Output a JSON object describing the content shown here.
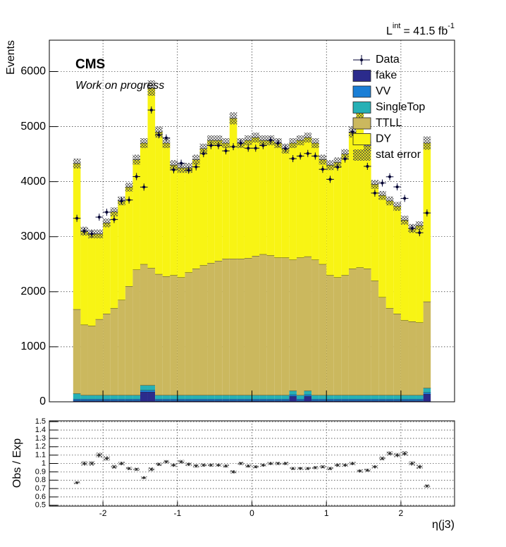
{
  "chart_data": [
    {
      "type": "histogram",
      "stacked": true,
      "grid": true,
      "lumi": [
        "L",
        "int",
        "= 41.5 fb",
        "-1"
      ],
      "experiment": "CMS",
      "subtitle": "Work on progress",
      "ylabel": "Events",
      "xlim": [
        -2.72,
        2.72
      ],
      "xticks": [
        -2,
        -1,
        0,
        1,
        2
      ],
      "ylim": [
        0,
        6570
      ],
      "yticks": [
        0,
        1000,
        2000,
        3000,
        4000,
        5000,
        6000
      ],
      "bins": [
        -2.4,
        -2.3,
        -2.2,
        -2.1,
        -2,
        -1.9,
        -1.8,
        -1.7,
        -1.6,
        -1.5,
        -1.4,
        -1.3,
        -1.2,
        -1.1,
        -1,
        -0.9,
        -0.8,
        -0.7,
        -0.6,
        -0.5,
        -0.4,
        -0.3,
        -0.2,
        -0.1,
        0,
        0.1,
        0.2,
        0.3,
        0.4,
        0.5,
        0.6,
        0.7,
        0.8,
        0.9,
        1,
        1.1,
        1.2,
        1.3,
        1.4,
        1.5,
        1.6,
        1.7,
        1.8,
        1.9,
        2,
        2.1,
        2.2,
        2.3,
        2.4
      ],
      "data": {
        "name": "Data",
        "color": "#000033",
        "values": [
          3334,
          3100,
          3050,
          3355,
          3445,
          3312,
          3650,
          3666,
          4092,
          3901,
          5301,
          4851,
          4794,
          4214,
          4335,
          4208,
          4268,
          4508,
          4655,
          4655,
          4559,
          4635,
          4700,
          4608,
          4608,
          4655,
          4750,
          4700,
          4600,
          4418,
          4465,
          4512,
          4465,
          4224,
          4042,
          4263,
          4410,
          4900,
          4778,
          4278,
          3792,
          3975,
          4088,
          3905,
          3696,
          3150,
          3072,
          3431
        ]
      },
      "series": [
        {
          "name": "fake",
          "color": "#2b2b8c",
          "values": [
            20,
            20,
            20,
            20,
            20,
            20,
            20,
            20,
            20,
            180,
            180,
            20,
            20,
            20,
            20,
            20,
            20,
            20,
            20,
            20,
            20,
            20,
            20,
            20,
            20,
            20,
            20,
            20,
            20,
            100,
            20,
            100,
            20,
            20,
            20,
            20,
            20,
            20,
            20,
            20,
            20,
            20,
            20,
            20,
            20,
            20,
            20,
            140
          ]
        },
        {
          "name": "VV",
          "color": "#1a7fd6",
          "values": [
            30,
            30,
            30,
            30,
            30,
            30,
            30,
            30,
            30,
            30,
            30,
            30,
            30,
            30,
            30,
            30,
            30,
            30,
            30,
            30,
            30,
            30,
            30,
            30,
            30,
            30,
            30,
            30,
            30,
            30,
            30,
            30,
            30,
            30,
            30,
            30,
            30,
            30,
            30,
            30,
            30,
            30,
            30,
            30,
            30,
            30,
            30,
            30
          ]
        },
        {
          "name": "SingleTop",
          "color": "#26b0b5",
          "values": [
            100,
            70,
            70,
            70,
            70,
            70,
            70,
            70,
            70,
            90,
            90,
            70,
            70,
            70,
            70,
            70,
            70,
            70,
            70,
            70,
            70,
            70,
            70,
            70,
            70,
            70,
            70,
            70,
            70,
            70,
            70,
            70,
            70,
            70,
            70,
            70,
            70,
            70,
            70,
            70,
            70,
            70,
            70,
            70,
            70,
            70,
            70,
            80
          ]
        },
        {
          "name": "TTLL",
          "color": "#cbb85e",
          "values": [
            1530,
            1280,
            1260,
            1380,
            1480,
            1580,
            1730,
            1980,
            2280,
            2200,
            2130,
            2200,
            2160,
            2180,
            2140,
            2230,
            2300,
            2360,
            2400,
            2440,
            2480,
            2480,
            2480,
            2490,
            2530,
            2560,
            2540,
            2500,
            2500,
            2380,
            2500,
            2440,
            2460,
            2380,
            2180,
            2140,
            2180,
            2300,
            2320,
            2300,
            2080,
            1780,
            1580,
            1480,
            1360,
            1340,
            1320,
            1570
          ]
        },
        {
          "name": "DY",
          "color": "#f8f414",
          "values": [
            2650,
            1700,
            1670,
            1550,
            1650,
            1750,
            1800,
            1800,
            2000,
            2200,
            3270,
            2580,
            2420,
            2000,
            1990,
            1900,
            1980,
            2120,
            2230,
            2190,
            2100,
            2550,
            2100,
            2140,
            2150,
            2070,
            2090,
            2080,
            1980,
            2120,
            2130,
            2160,
            2120,
            1900,
            2000,
            2090,
            2200,
            2480,
            2810,
            2230,
            1750,
            1850,
            1950,
            1950,
            1820,
            1690,
            1760,
            2880
          ]
        }
      ],
      "stat_error": {
        "name": "stat error",
        "color": "#555555",
        "values": [
          90,
          80,
          80,
          80,
          80,
          80,
          80,
          80,
          90,
          90,
          140,
          100,
          90,
          90,
          90,
          90,
          90,
          90,
          90,
          90,
          90,
          110,
          90,
          90,
          90,
          90,
          90,
          90,
          90,
          90,
          90,
          90,
          90,
          90,
          90,
          90,
          90,
          100,
          110,
          90,
          80,
          80,
          80,
          80,
          80,
          80,
          80,
          120
        ]
      }
    },
    {
      "type": "ratio",
      "grid": true,
      "ylabel": "Obs / Exp",
      "xlabel": "η(j3)",
      "xlim": [
        -2.72,
        2.72
      ],
      "xticks": [
        -2,
        -1,
        0,
        1,
        2
      ],
      "ylim": [
        0.49,
        1.51
      ],
      "yticks": [
        0.5,
        0.6,
        0.7,
        0.8,
        0.9,
        1,
        1.1,
        1.2,
        1.3,
        1.4,
        1.5
      ],
      "color": "#333333",
      "values": [
        0.77,
        1.0,
        1.0,
        1.1,
        1.06,
        0.96,
        1.0,
        0.94,
        0.93,
        0.83,
        0.93,
        0.99,
        1.02,
        0.98,
        1.02,
        0.99,
        0.97,
        0.98,
        0.98,
        0.98,
        0.97,
        0.9,
        1.0,
        0.97,
        0.96,
        0.98,
        1.0,
        1.0,
        1.0,
        0.94,
        0.94,
        0.94,
        0.95,
        0.96,
        0.94,
        0.98,
        0.98,
        1.0,
        0.91,
        0.92,
        0.96,
        1.06,
        1.12,
        1.1,
        1.12,
        1.0,
        0.96,
        0.73
      ]
    }
  ]
}
